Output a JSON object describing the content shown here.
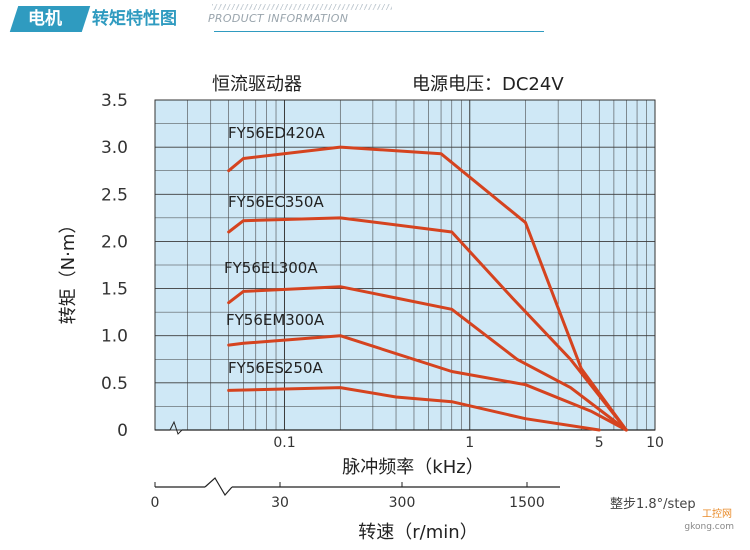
{
  "header": {
    "tag_left": "电机",
    "tag_right": "转矩特性图",
    "subtitle": "PRODUCT INFORMATION"
  },
  "chart_data": {
    "type": "line",
    "title_left": "恒流驱动器",
    "title_right": "电源电压：DC24V",
    "xlabel": "脉冲频率（kHz）",
    "ylabel": "转矩（N·m）",
    "xscale": "log",
    "xlim": [
      0.02,
      10
    ],
    "ylim": [
      0,
      3.5
    ],
    "x_ticks": [
      0.1,
      1,
      5,
      10
    ],
    "x_tick_labels": [
      "0.1",
      "1",
      "5",
      "10"
    ],
    "y_ticks": [
      0,
      0.5,
      1.0,
      1.5,
      2.0,
      2.5,
      3.0,
      3.5
    ],
    "y_tick_labels": [
      "0",
      "0.5",
      "1.0",
      "1.5",
      "2.0",
      "2.5",
      "3.0",
      "3.5"
    ],
    "secondary_axis": {
      "label": "转速（r/min）",
      "ticks": [
        "0",
        "30",
        "300",
        "1500"
      ],
      "note": "整步1.8°/step"
    },
    "series": [
      {
        "name": "FY56ED420A",
        "x": [
          0.05,
          0.06,
          0.2,
          0.7,
          2,
          4,
          7
        ],
        "y": [
          2.75,
          2.88,
          3.0,
          2.93,
          2.2,
          0.65,
          0.0
        ]
      },
      {
        "name": "FY56EC350A",
        "x": [
          0.05,
          0.06,
          0.2,
          0.8,
          1.7,
          3.5,
          7
        ],
        "y": [
          2.1,
          2.22,
          2.25,
          2.1,
          1.4,
          0.75,
          0.0
        ]
      },
      {
        "name": "FY56EL300A",
        "x": [
          0.05,
          0.06,
          0.2,
          0.8,
          1.8,
          3.5,
          7
        ],
        "y": [
          1.35,
          1.47,
          1.52,
          1.28,
          0.75,
          0.45,
          0.0
        ]
      },
      {
        "name": "FY56EM300A",
        "x": [
          0.05,
          0.06,
          0.2,
          0.8,
          2,
          4.5,
          7
        ],
        "y": [
          0.9,
          0.92,
          1.0,
          0.62,
          0.48,
          0.2,
          0.0
        ]
      },
      {
        "name": "FY56ES250A",
        "x": [
          0.05,
          0.2,
          0.4,
          0.8,
          2,
          5
        ],
        "y": [
          0.42,
          0.45,
          0.35,
          0.3,
          0.12,
          0.0
        ]
      }
    ],
    "line_color": "#d5431f",
    "plot_bg": "#cfe8f6",
    "grid_color": "#3b3b3b"
  },
  "watermark": {
    "line1": "工控网",
    "line2": "gkong.com"
  }
}
